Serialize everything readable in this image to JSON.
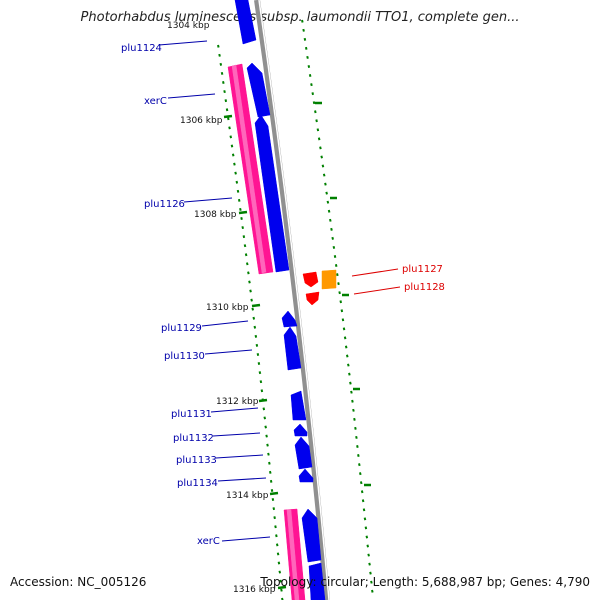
{
  "title": "Photorhabdus luminescens subsp. laumondii TTO1, complete gen...",
  "accession": "Accession: NC_005126",
  "topology": "Topology: circular; Length: 5,688,987 bp; Genes: 4,790",
  "colors": {
    "backbone": "#909090",
    "cds": "#0000ee",
    "trna": "#ff1493",
    "highlight_red": "#ff0000",
    "highlight_orange": "#ff9900",
    "tick": "#008000",
    "label_blue": "#0000aa",
    "label_red": "#dd0000"
  },
  "gene_labels": [
    {
      "name": "plu1124",
      "color": "label_blue"
    },
    {
      "name": "xerC",
      "color": "label_blue"
    },
    {
      "name": "plu1126",
      "color": "label_blue"
    },
    {
      "name": "plu1127",
      "color": "label_red"
    },
    {
      "name": "plu1128",
      "color": "label_red"
    },
    {
      "name": "plu1129",
      "color": "label_blue"
    },
    {
      "name": "plu1130",
      "color": "label_blue"
    },
    {
      "name": "plu1131",
      "color": "label_blue"
    },
    {
      "name": "plu1132",
      "color": "label_blue"
    },
    {
      "name": "plu1133",
      "color": "label_blue"
    },
    {
      "name": "plu1134",
      "color": "label_blue"
    },
    {
      "name": "xerC",
      "color": "label_blue"
    }
  ],
  "scale_labels": [
    "1304 kbp",
    "1306 kbp",
    "1308 kbp",
    "1310 kbp",
    "1312 kbp",
    "1314 kbp",
    "1316 kbp"
  ]
}
